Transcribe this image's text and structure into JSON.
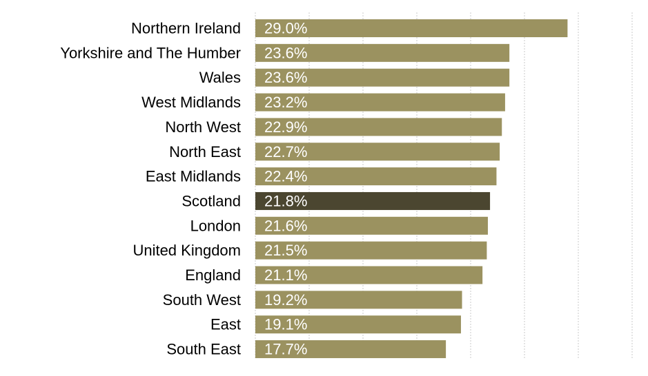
{
  "chart_data": {
    "type": "bar",
    "orientation": "horizontal",
    "categories": [
      "Northern Ireland",
      "Yorkshire and The Humber",
      "Wales",
      "West Midlands",
      "North West",
      "North East",
      "East Midlands",
      "Scotland",
      "London",
      "United Kingdom",
      "England",
      "South West",
      "East",
      "South East"
    ],
    "values": [
      29.0,
      23.6,
      23.6,
      23.2,
      22.9,
      22.7,
      22.4,
      21.8,
      21.6,
      21.5,
      21.1,
      19.2,
      19.1,
      17.7
    ],
    "data_labels": [
      "29.0%",
      "23.6%",
      "23.6%",
      "23.2%",
      "22.9%",
      "22.7%",
      "22.4%",
      "21.8%",
      "21.6%",
      "21.5%",
      "21.1%",
      "19.2%",
      "19.1%",
      "17.7%"
    ],
    "highlight_category": "Scotland",
    "xlim": [
      0,
      35
    ],
    "grid": true,
    "legend": "none",
    "title": "",
    "xlabel": "",
    "ylabel": "",
    "colors": {
      "bar": "#9b9260",
      "highlight": "#4b4630",
      "data_label": "#ffffff",
      "grid": "#c8c8c8"
    }
  }
}
